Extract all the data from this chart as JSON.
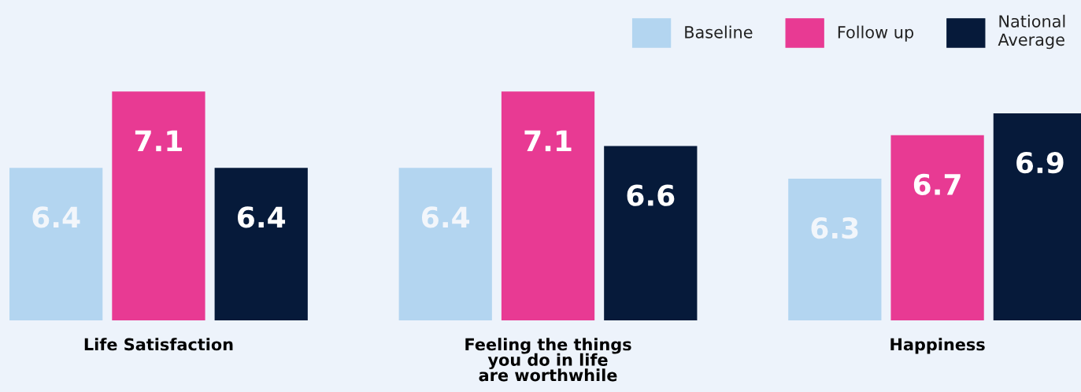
{
  "chart_data": {
    "type": "bar",
    "categories": [
      "Life Satisfaction",
      "Feeling the things\nyou do in life\nare worthwhile",
      "Happiness"
    ],
    "series": [
      {
        "name": "Baseline",
        "color": "#b3d5f0",
        "values": [
          6.4,
          6.4,
          6.3
        ]
      },
      {
        "name": "Follow up",
        "color": "#e83a93",
        "values": [
          7.1,
          7.1,
          6.7
        ]
      },
      {
        "name": "National\nAverage",
        "color": "#061a3a",
        "values": [
          6.4,
          6.6,
          6.9
        ]
      }
    ],
    "ylim": [
      5,
      7.94
    ],
    "data_labels": true,
    "legend": "top right",
    "grid": false
  }
}
